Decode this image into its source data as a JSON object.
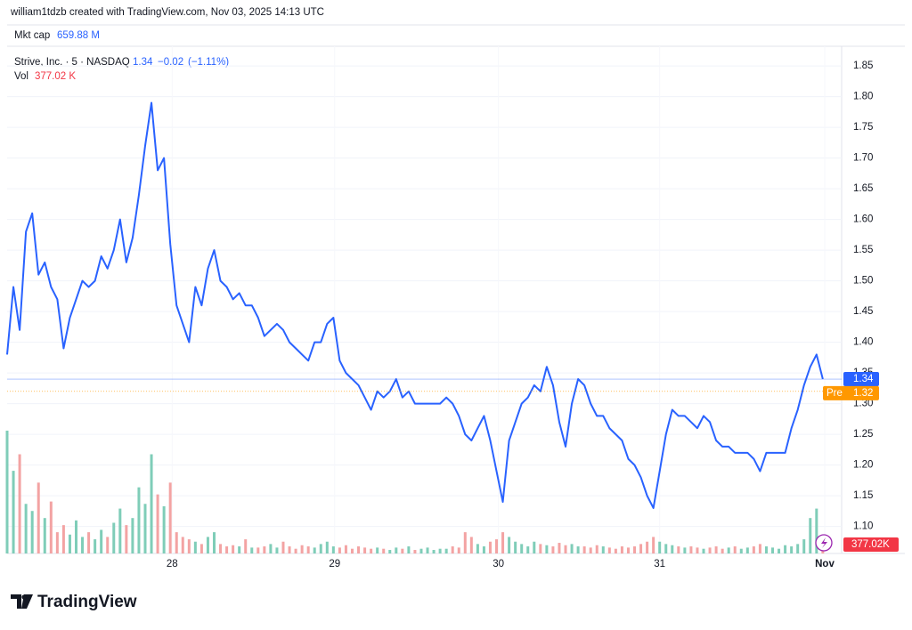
{
  "header": {
    "credit": "william1tdzb created with TradingView.com, Nov 03, 2025 14:13 UTC",
    "mkt_cap_label": "Mkt cap",
    "mkt_cap": "659.88 M"
  },
  "chart_data": {
    "type": "line",
    "symbol": "Strive, Inc. · 5 · NASDAQ",
    "last_price": 1.34,
    "change": "−0.02",
    "change_pct": "(−1.11%)",
    "volume_name": "Vol",
    "volume_header_label": "377.02 K",
    "volume_axis_label": "377.02K",
    "pre_market": {
      "label": "Pre",
      "value": 1.32
    },
    "series": [
      {
        "name": "Strive, Inc.",
        "color": "#2962ff",
        "values": [
          1.38,
          1.49,
          1.42,
          1.58,
          1.61,
          1.51,
          1.53,
          1.49,
          1.47,
          1.39,
          1.44,
          1.47,
          1.5,
          1.49,
          1.5,
          1.54,
          1.52,
          1.55,
          1.6,
          1.53,
          1.57,
          1.64,
          1.72,
          1.79,
          1.68,
          1.7,
          1.56,
          1.46,
          1.43,
          1.4,
          1.49,
          1.46,
          1.52,
          1.55,
          1.5,
          1.49,
          1.47,
          1.48,
          1.46,
          1.46,
          1.44,
          1.41,
          1.42,
          1.43,
          1.42,
          1.4,
          1.39,
          1.38,
          1.37,
          1.4,
          1.4,
          1.43,
          1.44,
          1.37,
          1.35,
          1.34,
          1.33,
          1.31,
          1.29,
          1.32,
          1.31,
          1.32,
          1.34,
          1.31,
          1.32,
          1.3,
          1.3,
          1.3,
          1.3,
          1.3,
          1.31,
          1.3,
          1.28,
          1.25,
          1.24,
          1.26,
          1.28,
          1.24,
          1.19,
          1.14,
          1.24,
          1.27,
          1.3,
          1.31,
          1.33,
          1.32,
          1.36,
          1.33,
          1.27,
          1.23,
          1.3,
          1.34,
          1.33,
          1.3,
          1.28,
          1.28,
          1.26,
          1.25,
          1.24,
          1.21,
          1.2,
          1.18,
          1.15,
          1.13,
          1.19,
          1.25,
          1.29,
          1.28,
          1.28,
          1.27,
          1.26,
          1.28,
          1.27,
          1.24,
          1.23,
          1.23,
          1.22,
          1.22,
          1.22,
          1.21,
          1.19,
          1.22,
          1.22,
          1.22,
          1.22,
          1.26,
          1.29,
          1.33,
          1.36,
          1.38,
          1.34
        ]
      },
      {
        "name": "Vol",
        "up_color": "#7fcdb8",
        "down_color": "#f3a3a3",
        "values": [
          5200,
          3500,
          4200,
          2100,
          1800,
          3000,
          1500,
          2200,
          900,
          1200,
          800,
          1400,
          700,
          900,
          600,
          1000,
          700,
          1300,
          1900,
          1200,
          1500,
          2800,
          2100,
          4200,
          2500,
          2000,
          3000,
          900,
          700,
          600,
          500,
          400,
          700,
          900,
          400,
          300,
          350,
          300,
          600,
          250,
          250,
          300,
          400,
          250,
          500,
          300,
          200,
          350,
          300,
          250,
          400,
          500,
          300,
          250,
          350,
          200,
          300,
          250,
          200,
          250,
          200,
          150,
          250,
          200,
          300,
          150,
          200,
          250,
          150,
          200,
          200,
          300,
          250,
          900,
          700,
          400,
          300,
          500,
          600,
          900,
          700,
          500,
          400,
          300,
          500,
          400,
          350,
          300,
          450,
          350,
          400,
          300,
          300,
          250,
          350,
          300,
          250,
          200,
          300,
          250,
          300,
          400,
          500,
          700,
          500,
          400,
          350,
          300,
          250,
          300,
          250,
          200,
          250,
          300,
          200,
          250,
          300,
          200,
          250,
          300,
          400,
          300,
          250,
          200,
          350,
          300,
          400,
          600,
          1500,
          1900,
          377.02
        ]
      }
    ],
    "xlim": [
      0,
      133
    ],
    "xticks": [
      {
        "value": 26.3,
        "label": "28"
      },
      {
        "value": 52.2,
        "label": "29"
      },
      {
        "value": 78.3,
        "label": "30"
      },
      {
        "value": 104.0,
        "label": "31"
      },
      {
        "value": 130.3,
        "label": "Nov"
      }
    ],
    "ylim": [
      1.056,
      1.882
    ],
    "yticks": [
      {
        "value": 1.1,
        "label": "1.10"
      },
      1.15,
      {
        "value": 1.2,
        "label": "1.20"
      },
      1.25,
      {
        "value": 1.3,
        "label": "1.30"
      },
      1.35,
      {
        "value": 1.4,
        "label": "1.40"
      },
      1.45,
      {
        "value": 1.5,
        "label": "1.50"
      },
      1.55,
      {
        "value": 1.6,
        "label": "1.60"
      },
      1.65,
      {
        "value": 1.7,
        "label": "1.70"
      },
      1.75,
      {
        "value": 1.8,
        "label": "1.80"
      },
      1.85
    ],
    "vlim": [
      0,
      5500
    ],
    "grid": true
  },
  "footer": {
    "brand": "TradingView"
  }
}
